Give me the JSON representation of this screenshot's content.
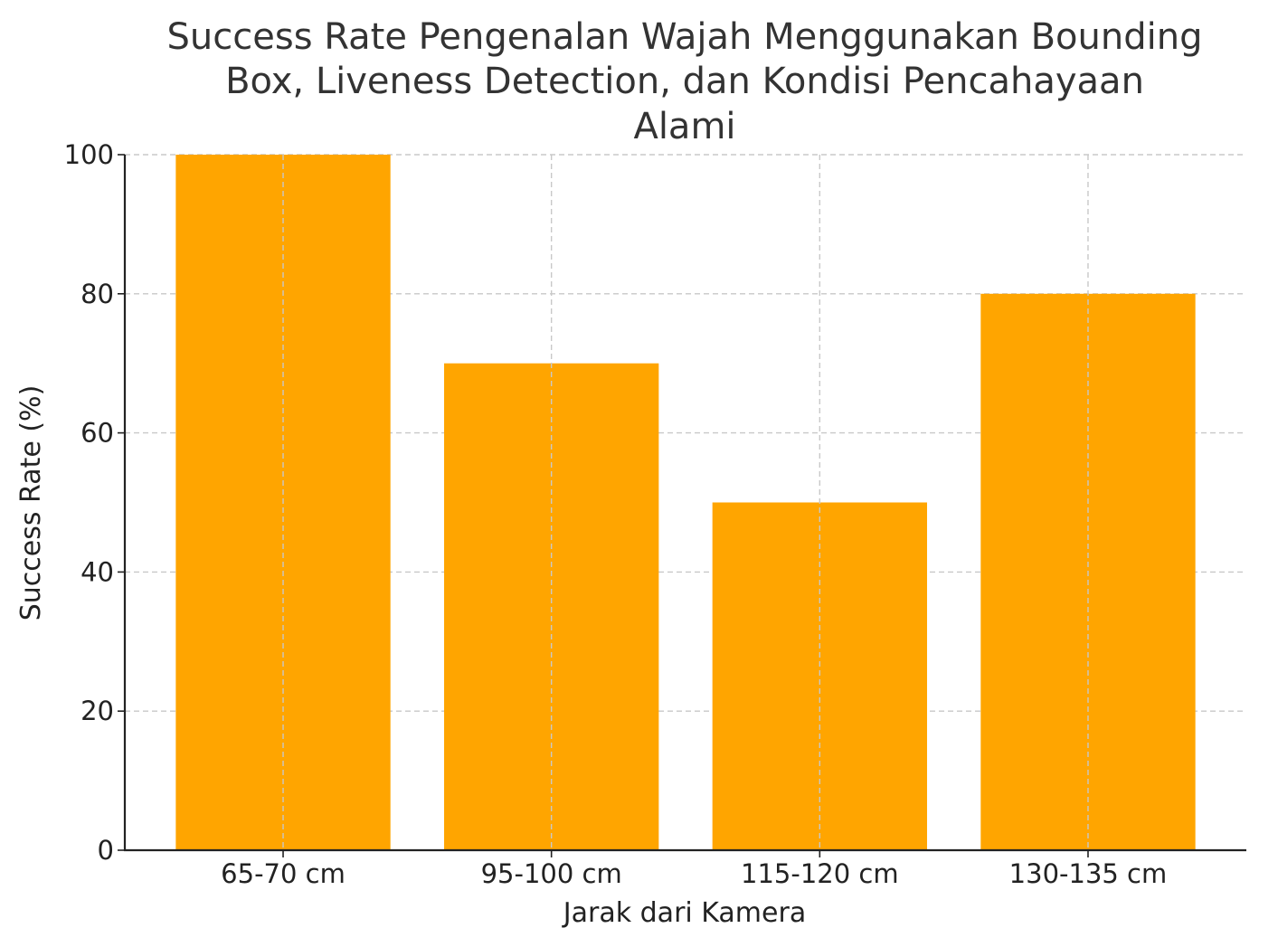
{
  "chart_data": {
    "type": "bar",
    "title_lines": [
      "Success Rate Pengenalan Wajah Menggunakan Bounding",
      "Box, Liveness Detection, dan Kondisi Pencahayaan",
      "Alami"
    ],
    "xlabel": "Jarak dari Kamera",
    "ylabel": "Success Rate (%)",
    "categories": [
      "65-70 cm",
      "95-100 cm",
      "115-120 cm",
      "130-135 cm"
    ],
    "values": [
      100,
      70,
      50,
      80
    ],
    "ylim": [
      0,
      100
    ],
    "yticks": [
      0,
      20,
      40,
      60,
      80,
      100
    ],
    "bar_color": "#FFA500",
    "grid": true
  }
}
